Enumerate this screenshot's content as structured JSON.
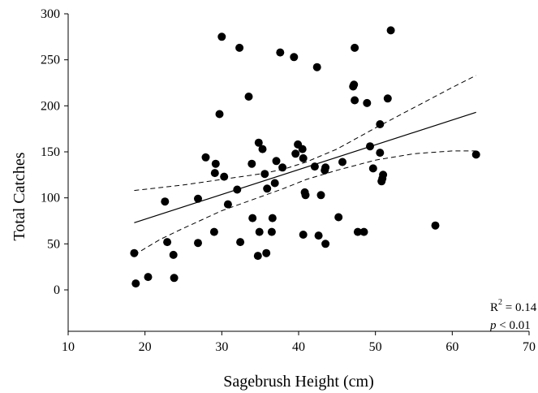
{
  "chart_data": {
    "type": "scatter",
    "xlabel": "Sagebrush Height (cm)",
    "ylabel": "Total Catches",
    "xlim": [
      10,
      70
    ],
    "ylim": [
      -45,
      300
    ],
    "xticks": [
      10,
      20,
      30,
      40,
      50,
      60,
      70
    ],
    "yticks": [
      0,
      50,
      100,
      150,
      200,
      250,
      300
    ],
    "xtick_labels": [
      "10",
      "20",
      "30",
      "40",
      "50",
      "60",
      "70"
    ],
    "ytick_labels": [
      "0",
      "50",
      "100",
      "150",
      "200",
      "250",
      "300"
    ],
    "grid": false,
    "points": [
      {
        "x": 18.6,
        "y": 40
      },
      {
        "x": 18.8,
        "y": 7
      },
      {
        "x": 20.4,
        "y": 14
      },
      {
        "x": 22.6,
        "y": 96
      },
      {
        "x": 22.9,
        "y": 52
      },
      {
        "x": 23.7,
        "y": 38
      },
      {
        "x": 23.8,
        "y": 13
      },
      {
        "x": 26.9,
        "y": 99
      },
      {
        "x": 26.9,
        "y": 51
      },
      {
        "x": 27.9,
        "y": 144
      },
      {
        "x": 29.0,
        "y": 63
      },
      {
        "x": 29.1,
        "y": 127
      },
      {
        "x": 29.2,
        "y": 137
      },
      {
        "x": 29.7,
        "y": 191
      },
      {
        "x": 30.0,
        "y": 275
      },
      {
        "x": 30.3,
        "y": 123
      },
      {
        "x": 30.8,
        "y": 93
      },
      {
        "x": 32.0,
        "y": 109
      },
      {
        "x": 32.3,
        "y": 263
      },
      {
        "x": 32.4,
        "y": 52
      },
      {
        "x": 33.5,
        "y": 210
      },
      {
        "x": 33.9,
        "y": 137
      },
      {
        "x": 34.0,
        "y": 78
      },
      {
        "x": 34.7,
        "y": 37
      },
      {
        "x": 34.8,
        "y": 160
      },
      {
        "x": 34.9,
        "y": 63
      },
      {
        "x": 35.3,
        "y": 153
      },
      {
        "x": 35.6,
        "y": 126
      },
      {
        "x": 35.8,
        "y": 40
      },
      {
        "x": 35.9,
        "y": 110
      },
      {
        "x": 36.5,
        "y": 63
      },
      {
        "x": 36.6,
        "y": 78
      },
      {
        "x": 36.9,
        "y": 116
      },
      {
        "x": 37.1,
        "y": 140
      },
      {
        "x": 37.6,
        "y": 258
      },
      {
        "x": 37.9,
        "y": 133
      },
      {
        "x": 39.4,
        "y": 253
      },
      {
        "x": 39.6,
        "y": 148
      },
      {
        "x": 39.9,
        "y": 158
      },
      {
        "x": 40.5,
        "y": 153
      },
      {
        "x": 40.6,
        "y": 143
      },
      {
        "x": 40.6,
        "y": 60
      },
      {
        "x": 40.8,
        "y": 106
      },
      {
        "x": 40.9,
        "y": 103
      },
      {
        "x": 42.1,
        "y": 134
      },
      {
        "x": 42.4,
        "y": 242
      },
      {
        "x": 42.6,
        "y": 59
      },
      {
        "x": 42.9,
        "y": 103
      },
      {
        "x": 43.4,
        "y": 130
      },
      {
        "x": 43.5,
        "y": 133
      },
      {
        "x": 43.5,
        "y": 50
      },
      {
        "x": 45.2,
        "y": 79
      },
      {
        "x": 45.7,
        "y": 139
      },
      {
        "x": 47.1,
        "y": 221
      },
      {
        "x": 47.2,
        "y": 223
      },
      {
        "x": 47.3,
        "y": 206
      },
      {
        "x": 47.3,
        "y": 263
      },
      {
        "x": 47.7,
        "y": 63
      },
      {
        "x": 48.5,
        "y": 63
      },
      {
        "x": 48.9,
        "y": 203
      },
      {
        "x": 49.3,
        "y": 156
      },
      {
        "x": 49.7,
        "y": 132
      },
      {
        "x": 50.6,
        "y": 180
      },
      {
        "x": 50.6,
        "y": 149
      },
      {
        "x": 50.8,
        "y": 118
      },
      {
        "x": 50.9,
        "y": 121
      },
      {
        "x": 51.0,
        "y": 125
      },
      {
        "x": 51.6,
        "y": 208
      },
      {
        "x": 52.0,
        "y": 282
      },
      {
        "x": 57.8,
        "y": 70
      },
      {
        "x": 63.1,
        "y": 147
      }
    ],
    "regression_line": [
      [
        18.6,
        73
      ],
      [
        63.1,
        193
      ]
    ],
    "confidence_band": {
      "upper": [
        [
          18.6,
          108
        ],
        [
          25,
          114
        ],
        [
          30,
          120
        ],
        [
          35,
          126
        ],
        [
          38,
          131
        ],
        [
          41,
          139
        ],
        [
          45,
          153
        ],
        [
          50,
          176
        ],
        [
          55,
          198
        ],
        [
          60,
          220
        ],
        [
          63.1,
          233
        ]
      ],
      "lower": [
        [
          18.6,
          38
        ],
        [
          22,
          55
        ],
        [
          25,
          67
        ],
        [
          30,
          86
        ],
        [
          35,
          101
        ],
        [
          38,
          110
        ],
        [
          41,
          120
        ],
        [
          45,
          130
        ],
        [
          50,
          141
        ],
        [
          55,
          148
        ],
        [
          60,
          151
        ],
        [
          63.1,
          151
        ]
      ]
    },
    "annotations": {
      "r2_prefix": "R",
      "r2_sup": "2",
      "r2_value": " = 0.14",
      "p_symbol": "p",
      "p_value": " < 0.01"
    }
  }
}
